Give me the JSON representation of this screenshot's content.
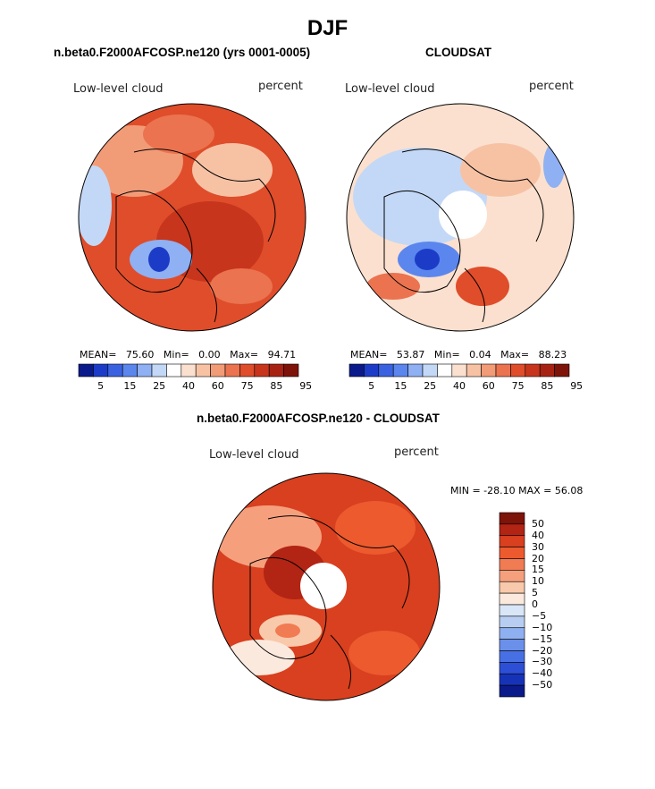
{
  "page": {
    "title": "DJF"
  },
  "panels": [
    {
      "heading": "n.beta0.F2000AFCOSP.ne120 (yrs 0001-0005)",
      "label_left": "Low-level cloud",
      "label_right": "percent",
      "stats": {
        "mean_label": "MEAN=",
        "mean": "75.60",
        "min_label": "Min=",
        "min": "0.00",
        "max_label": "Max=",
        "max": "94.71"
      }
    },
    {
      "heading": "CLOUDSAT",
      "label_left": "Low-level cloud",
      "label_right": "percent",
      "stats": {
        "mean_label": "MEAN=",
        "mean": "53.87",
        "min_label": "Min=",
        "min": "0.04",
        "max_label": "Max=",
        "max": "88.23"
      }
    },
    {
      "heading": "n.beta0.F2000AFCOSP.ne120 - CLOUDSAT",
      "label_left": "Low-level cloud",
      "label_right": "percent",
      "stats": {
        "minmax": "MIN = -28.10 MAX =  56.08"
      }
    }
  ],
  "chart_data": [
    {
      "type": "heatmap",
      "title": "n.beta0.F2000AFCOSP.ne120 (yrs 0001-0005)",
      "variable": "Low-level cloud",
      "units": "percent",
      "projection": "north polar stereographic",
      "mean": 75.6,
      "min": 0.0,
      "max": 94.71,
      "colorbar_ticks": [
        "5",
        "15",
        "25",
        "40",
        "60",
        "75",
        "85",
        "95"
      ]
    },
    {
      "type": "heatmap",
      "title": "CLOUDSAT",
      "variable": "Low-level cloud",
      "units": "percent",
      "projection": "north polar stereographic",
      "mean": 53.87,
      "min": 0.04,
      "max": 88.23,
      "colorbar_ticks": [
        "5",
        "15",
        "25",
        "40",
        "60",
        "75",
        "85",
        "95"
      ]
    },
    {
      "type": "heatmap",
      "title": "n.beta0.F2000AFCOSP.ne120 - CLOUDSAT",
      "variable": "Low-level cloud",
      "units": "percent",
      "projection": "north polar stereographic",
      "min": -28.1,
      "max": 56.08,
      "colorbar_ticks": [
        "50",
        "40",
        "30",
        "20",
        "15",
        "10",
        "5",
        "0",
        "−5",
        "−10",
        "−15",
        "−20",
        "−30",
        "−40",
        "−50"
      ]
    }
  ],
  "colors": {
    "seq": [
      "#0b1a8a",
      "#1c3cc8",
      "#3a62e0",
      "#5b86ee",
      "#8fb0f2",
      "#c3d8f6",
      "#ffffff",
      "#fbe0cf",
      "#f7c2a4",
      "#f29b77",
      "#eb734f",
      "#df4d2b",
      "#c7351c",
      "#a82213",
      "#7e1309"
    ],
    "diff": [
      "#7e1309",
      "#b22414",
      "#d8401f",
      "#ec5a2e",
      "#f17b52",
      "#f59f7d",
      "#f9c9ab",
      "#fce9dd",
      "#d8e6f7",
      "#b7cef2",
      "#8fb0f0",
      "#6a90ea",
      "#4770e4",
      "#2d4fd6",
      "#1633b8",
      "#0b1a8a"
    ]
  }
}
